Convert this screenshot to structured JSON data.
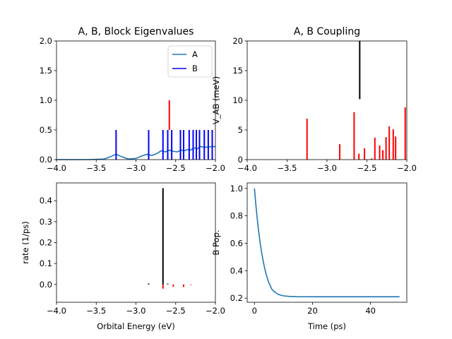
{
  "chart_data": [
    {
      "id": "eig",
      "type": "line",
      "title": "A, B, Block Eigenvalues",
      "xlabel": "",
      "ylabel": "",
      "xlim": [
        -4.0,
        -2.0
      ],
      "ylim": [
        0.0,
        2.0
      ],
      "xticks": [
        "-4.0",
        "-3.5",
        "-3.0",
        "-2.5",
        "-2.0"
      ],
      "yticks": [
        "0.0",
        "0.5",
        "1.0",
        "1.5",
        "2.0"
      ],
      "legend": {
        "placement": "top-right",
        "entries": [
          {
            "label": "A",
            "color": "#1f77b4"
          },
          {
            "label": "B",
            "color": "#0000ff"
          }
        ]
      },
      "series": [
        {
          "name": "A",
          "type": "line",
          "color": "#1f77b4",
          "x": [
            -4.0,
            -3.6,
            -3.4,
            -3.32,
            -3.25,
            -3.18,
            -3.1,
            -3.0,
            -2.93,
            -2.86,
            -2.8,
            -2.74,
            -2.68,
            -2.63,
            -2.58,
            -2.53,
            -2.48,
            -2.43,
            -2.39,
            -2.35,
            -2.31,
            -2.27,
            -2.23,
            -2.19,
            -2.15,
            -2.1,
            -2.05,
            -2.0
          ],
          "y": [
            0.0,
            0.0,
            0.01,
            0.05,
            0.09,
            0.05,
            0.01,
            0.02,
            0.06,
            0.09,
            0.07,
            0.1,
            0.15,
            0.13,
            0.16,
            0.14,
            0.13,
            0.16,
            0.15,
            0.17,
            0.16,
            0.2,
            0.18,
            0.22,
            0.21,
            0.21,
            0.22,
            0.22
          ]
        },
        {
          "name": "B",
          "type": "stem",
          "color": "#0000ff",
          "x": [
            -3.25,
            -2.84,
            -2.66,
            -2.6,
            -2.55,
            -2.44,
            -2.4,
            -2.33,
            -2.28,
            -2.24,
            -2.2,
            -2.14,
            -2.09,
            -2.04
          ],
          "y": [
            0.5,
            0.5,
            0.5,
            0.5,
            0.5,
            0.5,
            0.5,
            0.5,
            0.5,
            0.5,
            0.5,
            0.5,
            0.5,
            0.5
          ]
        },
        {
          "name": "",
          "type": "stem",
          "color": "#ff0000",
          "x": [
            -2.58
          ],
          "y0": [
            0.5
          ],
          "y": [
            1.0
          ]
        }
      ]
    },
    {
      "id": "coupling",
      "type": "bar",
      "title": "A, B Coupling",
      "xlabel": "",
      "ylabel": "V_AB (meV)",
      "xlim": [
        -4.0,
        -2.0
      ],
      "ylim": [
        0,
        20
      ],
      "xticks": [
        "-4.0",
        "-3.5",
        "-3.0",
        "-2.5",
        "-2.0"
      ],
      "yticks": [
        "0",
        "5",
        "10",
        "15",
        "20"
      ],
      "series": [
        {
          "name": "",
          "type": "stem",
          "color": "#ff0000",
          "x": [
            -3.25,
            -2.84,
            -2.66,
            -2.6,
            -2.53,
            -2.44,
            -2.4,
            -2.34,
            -2.3,
            -2.26,
            -2.22,
            -2.17,
            -2.14,
            -2.02
          ],
          "y": [
            6.9,
            2.6,
            8.0,
            1.0,
            1.9,
            0.2,
            3.7,
            2.4,
            1.6,
            3.8,
            5.6,
            5.1,
            3.9,
            8.8
          ]
        },
        {
          "name": "",
          "type": "stem",
          "color": "#000000",
          "x": [
            -2.59
          ],
          "y0": [
            10.2
          ],
          "y": [
            20.0
          ]
        }
      ]
    },
    {
      "id": "rate",
      "type": "bar",
      "title": "",
      "xlabel": "Orbital Energy (eV)",
      "ylabel": "rate (1/ps)",
      "xlim": [
        -4.0,
        -2.0
      ],
      "ylim": [
        -0.085,
        0.485
      ],
      "xticks": [
        "-4.0",
        "-3.5",
        "-3.0",
        "-2.5",
        "-2.0"
      ],
      "yticks": [
        "0.0",
        "0.1",
        "0.2",
        "0.3",
        "0.4"
      ],
      "series": [
        {
          "name": "",
          "type": "stem",
          "color": "#ff0000",
          "x": [
            -2.66,
            -2.53,
            -2.4,
            -2.31
          ],
          "y": [
            -0.02,
            -0.01,
            -0.012,
            -0.003
          ]
        },
        {
          "name": "",
          "type": "stem",
          "color": "#000000",
          "x": [
            -2.84,
            -2.66,
            -2.6
          ],
          "y": [
            0.005,
            0.46,
            0.004
          ]
        }
      ]
    },
    {
      "id": "pop",
      "type": "line",
      "title": "",
      "xlabel": "Time (ps)",
      "ylabel": "B Pop.",
      "xlim": [
        -2.5,
        52.5
      ],
      "ylim": [
        0.17,
        1.04
      ],
      "xticks": [
        "0",
        "20",
        "40"
      ],
      "yticks": [
        "0.2",
        "0.4",
        "0.6",
        "0.8",
        "1.0"
      ],
      "series": [
        {
          "name": "",
          "type": "line",
          "color": "#1f77b4",
          "x": [
            0,
            0.5,
            1,
            1.5,
            2,
            2.5,
            3,
            3.5,
            4,
            4.5,
            5,
            6,
            7,
            8,
            9,
            10,
            12,
            15,
            20,
            25,
            30,
            35,
            40,
            45,
            50
          ],
          "y": [
            1.0,
            0.879,
            0.772,
            0.678,
            0.599,
            0.529,
            0.471,
            0.42,
            0.378,
            0.342,
            0.311,
            0.265,
            0.244,
            0.23,
            0.222,
            0.217,
            0.213,
            0.211,
            0.21,
            0.21,
            0.21,
            0.21,
            0.21,
            0.21,
            0.21
          ]
        }
      ]
    }
  ]
}
